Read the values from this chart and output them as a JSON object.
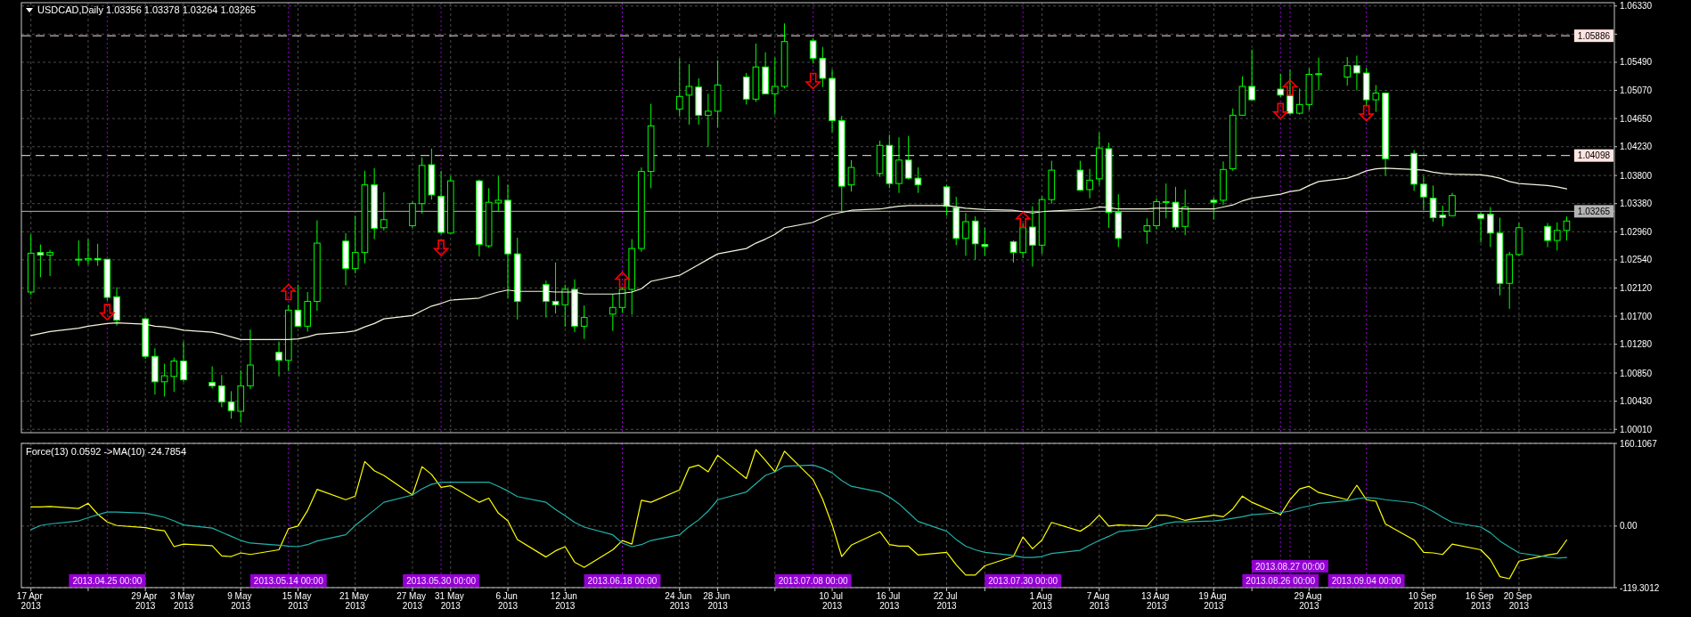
{
  "chart_data": [
    {
      "type": "candlestick",
      "title": "USDCAD,Daily 1.03356 1.03378 1.03264 1.03265",
      "x": [
        "2013-04-17",
        "2013-04-18",
        "2013-04-19",
        "2013-04-22",
        "2013-04-23",
        "2013-04-24",
        "2013-04-25",
        "2013-04-26",
        "2013-04-29",
        "2013-04-30",
        "2013-05-01",
        "2013-05-02",
        "2013-05-03",
        "2013-05-06",
        "2013-05-07",
        "2013-05-08",
        "2013-05-09",
        "2013-05-10",
        "2013-05-13",
        "2013-05-14",
        "2013-05-15",
        "2013-05-16",
        "2013-05-17",
        "2013-05-20",
        "2013-05-21",
        "2013-05-22",
        "2013-05-23",
        "2013-05-24",
        "2013-05-27",
        "2013-05-28",
        "2013-05-29",
        "2013-05-30",
        "2013-05-31",
        "2013-06-03",
        "2013-06-04",
        "2013-06-05",
        "2013-06-06",
        "2013-06-07",
        "2013-06-10",
        "2013-06-11",
        "2013-06-12",
        "2013-06-13",
        "2013-06-14",
        "2013-06-17",
        "2013-06-18",
        "2013-06-19",
        "2013-06-20",
        "2013-06-21",
        "2013-06-24",
        "2013-06-25",
        "2013-06-26",
        "2013-06-27",
        "2013-06-28",
        "2013-07-01",
        "2013-07-02",
        "2013-07-03",
        "2013-07-04",
        "2013-07-05",
        "2013-07-08",
        "2013-07-09",
        "2013-07-10",
        "2013-07-11",
        "2013-07-12",
        "2013-07-15",
        "2013-07-16",
        "2013-07-17",
        "2013-07-18",
        "2013-07-19",
        "2013-07-22",
        "2013-07-23",
        "2013-07-24",
        "2013-07-25",
        "2013-07-26",
        "2013-07-29",
        "2013-07-30",
        "2013-07-31",
        "2013-08-01",
        "2013-08-02",
        "2013-08-05",
        "2013-08-06",
        "2013-08-07",
        "2013-08-08",
        "2013-08-09",
        "2013-08-12",
        "2013-08-13",
        "2013-08-14",
        "2013-08-15",
        "2013-08-16",
        "2013-08-19",
        "2013-08-20",
        "2013-08-21",
        "2013-08-22",
        "2013-08-23",
        "2013-08-26",
        "2013-08-27",
        "2013-08-28",
        "2013-08-29",
        "2013-08-30",
        "2013-09-02",
        "2013-09-03",
        "2013-09-04",
        "2013-09-05",
        "2013-09-06",
        "2013-09-09",
        "2013-09-10",
        "2013-09-11",
        "2013-09-12",
        "2013-09-13",
        "2013-09-16",
        "2013-09-17",
        "2013-09-18",
        "2013-09-19",
        "2013-09-20",
        "2013-09-23",
        "2013-09-24",
        "2013-09-25"
      ],
      "ohlc": [
        [
          1.0206,
          1.0292,
          1.0202,
          1.0264
        ],
        [
          1.0265,
          1.0277,
          1.0228,
          1.0261
        ],
        [
          1.0261,
          1.0269,
          1.023,
          1.0265
        ],
        [
          1.0254,
          1.0283,
          1.0245,
          1.0255
        ],
        [
          1.0254,
          1.0285,
          1.0247,
          1.0256
        ],
        [
          1.0256,
          1.0278,
          1.0245,
          1.0254
        ],
        [
          1.0255,
          1.0255,
          1.0193,
          1.0198
        ],
        [
          1.0199,
          1.0213,
          1.0156,
          1.0164
        ],
        [
          1.0166,
          1.0168,
          1.0106,
          1.011
        ],
        [
          1.011,
          1.0122,
          1.0053,
          1.0072
        ],
        [
          1.0072,
          1.0099,
          1.005,
          1.0081
        ],
        [
          1.008,
          1.0108,
          1.0057,
          1.0103
        ],
        [
          1.0103,
          1.0132,
          1.0072,
          1.0075
        ],
        [
          1.0071,
          1.0095,
          1.0062,
          1.0066
        ],
        [
          1.0066,
          1.0082,
          1.0034,
          1.0042
        ],
        [
          1.0042,
          1.0058,
          1.0017,
          1.0029
        ],
        [
          1.0028,
          1.0089,
          1.0011,
          1.0066
        ],
        [
          1.0066,
          1.015,
          1.0061,
          1.0097
        ],
        [
          1.0116,
          1.0132,
          1.008,
          1.0104
        ],
        [
          1.0104,
          1.0187,
          1.0088,
          1.0179
        ],
        [
          1.0179,
          1.0217,
          1.0154,
          1.0155
        ],
        [
          1.0155,
          1.0206,
          1.0147,
          1.0192
        ],
        [
          1.0192,
          1.0313,
          1.0178,
          1.0279
        ],
        [
          1.0282,
          1.0294,
          1.0216,
          1.0241
        ],
        [
          1.0241,
          1.032,
          1.0234,
          1.0265
        ],
        [
          1.0265,
          1.0387,
          1.0249,
          1.0366
        ],
        [
          1.0366,
          1.0391,
          1.0285,
          1.0301
        ],
        [
          1.0302,
          1.0355,
          1.0298,
          1.0314
        ],
        [
          1.0305,
          1.0341,
          1.0302,
          1.0338
        ],
        [
          1.0338,
          1.0407,
          1.0323,
          1.0395
        ],
        [
          1.0396,
          1.042,
          1.0344,
          1.0351
        ],
        [
          1.0349,
          1.0387,
          1.0292,
          1.0295
        ],
        [
          1.0294,
          1.0379,
          1.0293,
          1.0372
        ],
        [
          1.0372,
          1.0374,
          1.0259,
          1.0277
        ],
        [
          1.0275,
          1.0361,
          1.0272,
          1.034
        ],
        [
          1.0339,
          1.0379,
          1.0326,
          1.0343
        ],
        [
          1.0343,
          1.0366,
          1.0197,
          1.0263
        ],
        [
          1.0263,
          1.0287,
          1.0165,
          1.0192
        ],
        [
          1.0217,
          1.0223,
          1.0168,
          1.0192
        ],
        [
          1.0192,
          1.025,
          1.0174,
          1.0187
        ],
        [
          1.0187,
          1.0217,
          1.0154,
          1.021
        ],
        [
          1.021,
          1.0225,
          1.0146,
          1.0155
        ],
        [
          1.0155,
          1.0186,
          1.0136,
          1.0168
        ],
        [
          1.0173,
          1.0203,
          1.0148,
          1.0183
        ],
        [
          1.0183,
          1.0213,
          1.0175,
          1.021
        ],
        [
          1.021,
          1.0285,
          1.0172,
          1.0271
        ],
        [
          1.0271,
          1.0392,
          1.0266,
          1.0386
        ],
        [
          1.0386,
          1.0487,
          1.0361,
          1.0454
        ],
        [
          1.0479,
          1.0555,
          1.0469,
          1.0498
        ],
        [
          1.05,
          1.0546,
          1.0456,
          1.0513
        ],
        [
          1.0512,
          1.0525,
          1.0456,
          1.047
        ],
        [
          1.047,
          1.0502,
          1.0423,
          1.0476
        ],
        [
          1.0476,
          1.0552,
          1.0452,
          1.0515
        ],
        [
          1.0527,
          1.0533,
          1.0486,
          1.0494
        ],
        [
          1.0494,
          1.0577,
          1.049,
          1.0542
        ],
        [
          1.0542,
          1.0564,
          1.0501,
          1.0502
        ],
        [
          1.0502,
          1.0556,
          1.0471,
          1.0513
        ],
        [
          1.0513,
          1.0607,
          1.051,
          1.058
        ],
        [
          1.0581,
          1.0585,
          1.0547,
          1.0555
        ],
        [
          1.0555,
          1.0572,
          1.0512,
          1.0525
        ],
        [
          1.0525,
          1.0538,
          1.0445,
          1.0462
        ],
        [
          1.0462,
          1.0469,
          1.0324,
          1.0364
        ],
        [
          1.0366,
          1.0403,
          1.0356,
          1.0392
        ],
        [
          1.0383,
          1.0432,
          1.0378,
          1.0425
        ],
        [
          1.0425,
          1.0441,
          1.0361,
          1.0368
        ],
        [
          1.0368,
          1.0437,
          1.0354,
          1.0403
        ],
        [
          1.0403,
          1.0439,
          1.0374,
          1.0376
        ],
        [
          1.0376,
          1.0392,
          1.0354,
          1.0366
        ],
        [
          1.0363,
          1.0366,
          1.032,
          1.0334
        ],
        [
          1.0332,
          1.0348,
          1.0276,
          1.0286
        ],
        [
          1.0286,
          1.0324,
          1.026,
          1.0311
        ],
        [
          1.0312,
          1.0319,
          1.0254,
          1.0278
        ],
        [
          1.0277,
          1.0302,
          1.026,
          1.0274
        ],
        [
          1.0281,
          1.0283,
          1.025,
          1.0265
        ],
        [
          1.0265,
          1.0309,
          1.0257,
          1.0302
        ],
        [
          1.0303,
          1.0334,
          1.0244,
          1.0276
        ],
        [
          1.0276,
          1.0349,
          1.0263,
          1.0344
        ],
        [
          1.0344,
          1.0402,
          1.0338,
          1.0388
        ],
        [
          1.0388,
          1.0402,
          1.0357,
          1.0358
        ],
        [
          1.0359,
          1.039,
          1.0346,
          1.0373
        ],
        [
          1.0375,
          1.0444,
          1.0366,
          1.0421
        ],
        [
          1.042,
          1.0429,
          1.0302,
          1.0325
        ],
        [
          1.0325,
          1.0352,
          1.0273,
          1.0286
        ],
        [
          1.0297,
          1.0316,
          1.0278,
          1.0305
        ],
        [
          1.0305,
          1.0346,
          1.03,
          1.0341
        ],
        [
          1.034,
          1.0368,
          1.0316,
          1.0341
        ],
        [
          1.034,
          1.0363,
          1.0299,
          1.0303
        ],
        [
          1.0304,
          1.0359,
          1.0291,
          1.0333
        ],
        [
          1.0343,
          1.0347,
          1.0314,
          1.034
        ],
        [
          1.0343,
          1.0401,
          1.0336,
          1.0389
        ],
        [
          1.039,
          1.048,
          1.0387,
          1.047
        ],
        [
          1.047,
          1.0528,
          1.0469,
          1.0513
        ],
        [
          1.0513,
          1.0568,
          1.0492,
          1.0493
        ],
        [
          1.0509,
          1.0532,
          1.0497,
          1.05
        ],
        [
          1.05,
          1.0538,
          1.0471,
          1.0473
        ],
        [
          1.0473,
          1.051,
          1.0471,
          1.0486
        ],
        [
          1.0486,
          1.054,
          1.0478,
          1.0531
        ],
        [
          1.0531,
          1.0556,
          1.0507,
          1.0532
        ],
        [
          1.0527,
          1.0557,
          1.0514,
          1.0544
        ],
        [
          1.0544,
          1.0559,
          1.0507,
          1.0533
        ],
        [
          1.0533,
          1.0541,
          1.0484,
          1.0493
        ],
        [
          1.0493,
          1.0515,
          1.0475,
          1.0503
        ],
        [
          1.0503,
          1.0504,
          1.038,
          1.0405
        ],
        [
          1.0413,
          1.0418,
          1.0357,
          1.0367
        ],
        [
          1.0367,
          1.0379,
          1.0328,
          1.0348
        ],
        [
          1.0346,
          1.0365,
          1.0311,
          1.0317
        ],
        [
          1.0321,
          1.0335,
          1.0304,
          1.0317
        ],
        [
          1.032,
          1.0354,
          1.0319,
          1.035
        ],
        [
          1.0322,
          1.0325,
          1.028,
          1.0316
        ],
        [
          1.0322,
          1.0333,
          1.0273,
          1.0294
        ],
        [
          1.0294,
          1.0317,
          1.0201,
          1.0219
        ],
        [
          1.0219,
          1.0266,
          1.0181,
          1.0262
        ],
        [
          1.0262,
          1.0309,
          1.026,
          1.0302
        ],
        [
          1.0304,
          1.0309,
          1.0273,
          1.0283
        ],
        [
          1.0283,
          1.031,
          1.0268,
          1.0298
        ],
        [
          1.0298,
          1.0319,
          1.0283,
          1.0312
        ]
      ],
      "color": "#00ff00",
      "colors": [
        "#000000",
        "#ffffff",
        "#000000",
        "#000000",
        "#000000",
        "#ffffff",
        "#ffffff",
        "#ffffff",
        "#ffffff",
        "#ffffff",
        "#000000",
        "#000000",
        "#ffffff",
        "#ffffff",
        "#ffffff",
        "#ffffff",
        "#000000",
        "#000000",
        "#ffffff",
        "#000000",
        "#ffffff",
        "#000000",
        "#000000",
        "#ffffff",
        "#000000",
        "#000000",
        "#ffffff",
        "#000000",
        "#000000",
        "#000000",
        "#ffffff",
        "#ffffff",
        "#000000",
        "#ffffff",
        "#000000",
        "#000000",
        "#ffffff",
        "#ffffff",
        "#ffffff",
        "#ffffff",
        "#000000",
        "#ffffff",
        "#000000",
        "#000000",
        "#000000",
        "#000000",
        "#000000",
        "#000000",
        "#000000",
        "#000000",
        "#ffffff",
        "#000000",
        "#000000",
        "#ffffff",
        "#000000",
        "#ffffff",
        "#000000",
        "#000000",
        "#ffffff",
        "#ffffff",
        "#ffffff",
        "#ffffff",
        "#000000",
        "#000000",
        "#ffffff",
        "#000000",
        "#ffffff",
        "#ffffff",
        "#ffffff",
        "#ffffff",
        "#000000",
        "#ffffff",
        "#ffffff",
        "#ffffff",
        "#000000",
        "#ffffff",
        "#000000",
        "#000000",
        "#ffffff",
        "#000000",
        "#000000",
        "#ffffff",
        "#ffffff",
        "#000000",
        "#000000",
        "#000000",
        "#ffffff",
        "#000000",
        "#ffffff",
        "#000000",
        "#000000",
        "#000000",
        "#ffffff",
        "#ffffff",
        "#ffffff",
        "#000000",
        "#000000",
        "#000000",
        "#000000",
        "#ffffff",
        "#ffffff",
        "#000000",
        "#ffffff",
        "#ffffff",
        "#ffffff",
        "#ffffff",
        "#ffffff",
        "#000000",
        "#ffffff",
        "#ffffff",
        "#ffffff",
        "#000000",
        "#000000",
        "#ffffff",
        "#000000",
        "#000000"
      ],
      "series": [
        {
          "type": "line",
          "color": "#f5f5dc",
          "values": [
            1.0141,
            1.0144,
            1.0147,
            1.0152,
            1.0155,
            1.0157,
            1.0159,
            1.016,
            1.0158,
            1.0155,
            1.0154,
            1.0152,
            1.0149,
            1.0146,
            1.0143,
            1.0139,
            1.0135,
            1.0135,
            1.0135,
            1.0135,
            1.0136,
            1.0139,
            1.0143,
            1.0146,
            1.0148,
            1.0154,
            1.0159,
            1.0166,
            1.0171,
            1.0178,
            1.0185,
            1.0189,
            1.0194,
            1.0197,
            1.0202,
            1.0206,
            1.0209,
            1.0207,
            1.0207,
            1.0206,
            1.0206,
            1.0206,
            1.0203,
            1.0203,
            1.0204,
            1.0206,
            1.0211,
            1.0222,
            1.0231,
            1.0239,
            1.0247,
            1.0255,
            1.0263,
            1.0271,
            1.0279,
            1.0285,
            1.0292,
            1.0302,
            1.031,
            1.0317,
            1.0322,
            1.0325,
            1.0328,
            1.033,
            1.0332,
            1.0334,
            1.0335,
            1.0335,
            1.0335,
            1.0333,
            1.0331,
            1.033,
            1.0329,
            1.0328,
            1.0326,
            1.0324,
            1.0326,
            1.0327,
            1.0329,
            1.033,
            1.0333,
            1.0332,
            1.033,
            1.033,
            1.0331,
            1.0331,
            1.0331,
            1.033,
            1.033,
            1.0333,
            1.0336,
            1.0342,
            1.0346,
            1.0352,
            1.0356,
            1.0358,
            1.0365,
            1.0371,
            1.0376,
            1.0381,
            1.0387,
            1.039,
            1.0391,
            1.0389,
            1.0388,
            1.0385,
            1.0383,
            1.0382,
            1.0381,
            1.0379,
            1.0376,
            1.0371,
            1.0368,
            1.0365,
            1.0363,
            1.036
          ]
        },
        {
          "type": "scatter",
          "color": "#ff0000",
          "marker": "triangle",
          "values": [
            null,
            null,
            null,
            null,
            null,
            null,
            1.0176,
            null,
            null,
            null,
            null,
            null,
            null,
            null,
            null,
            null,
            null,
            null,
            null,
            1.0206,
            null,
            null,
            null,
            null,
            null,
            null,
            null,
            null,
            null,
            null,
            null,
            1.0272,
            null,
            null,
            null,
            null,
            null,
            null,
            null,
            null,
            null,
            null,
            null,
            null,
            1.0224,
            null,
            null,
            null,
            null,
            null,
            null,
            null,
            null,
            null,
            null,
            null,
            null,
            null,
            1.0521,
            null,
            null,
            null,
            null,
            null,
            null,
            null,
            null,
            null,
            null,
            null,
            null,
            null,
            null,
            null,
            1.0314,
            null,
            null,
            null,
            null,
            null,
            null,
            null,
            null,
            null,
            null,
            null,
            null,
            null,
            null,
            null,
            null,
            null,
            null,
            1.0476,
            1.0511,
            null,
            null,
            null,
            null,
            null,
            1.0473,
            null,
            null,
            null,
            null,
            null,
            null,
            null,
            null,
            null,
            null,
            null,
            null,
            null,
            null,
            null
          ]
        }
      ],
      "xlim": [
        "2013-04-16",
        "2013-09-30"
      ],
      "xticks": [
        {
          "value": "2013-04-17",
          "label": null
        },
        {
          "value": "2013-04-23",
          "label": null
        },
        {
          "value": "2013-04-29",
          "label": null
        },
        {
          "value": "2013-05-03",
          "label": null
        },
        {
          "value": "2013-05-09",
          "label": null
        },
        {
          "value": "2013-05-15",
          "label": null
        },
        {
          "value": "2013-05-21",
          "label": null
        },
        {
          "value": "2013-05-27",
          "label": null
        },
        {
          "value": "2013-05-31",
          "label": null
        },
        {
          "value": "2013-06-06",
          "label": null
        },
        {
          "value": "2013-06-12",
          "label": null
        },
        {
          "value": "2013-06-24",
          "label": null
        },
        {
          "value": "2013-06-28",
          "label": null
        },
        {
          "value": "2013-07-04",
          "label": null
        },
        {
          "value": "2013-07-10",
          "label": null
        },
        {
          "value": "2013-07-16",
          "label": null
        },
        {
          "value": "2013-07-22",
          "label": null
        },
        {
          "value": "2013-07-26",
          "label": null
        },
        {
          "value": "2013-08-01",
          "label": null
        },
        {
          "value": "2013-08-07",
          "label": null
        },
        {
          "value": "2013-08-13",
          "label": null
        },
        {
          "value": "2013-08-19",
          "label": null
        },
        {
          "value": "2013-08-23",
          "label": null
        },
        {
          "value": "2013-08-29",
          "label": null
        },
        {
          "value": "2013-09-10",
          "label": null
        },
        {
          "value": "2013-09-16",
          "label": null
        },
        {
          "value": "2013-09-20",
          "label": null
        }
      ],
      "ylim": [
        0.9996,
        1.0638
      ],
      "yticks": [
        {
          "value": 1.0001,
          "label": "1.00010"
        },
        {
          "value": 1.0043,
          "label": "1.00430"
        },
        {
          "value": 1.0085,
          "label": "1.00850"
        },
        {
          "value": 1.0128,
          "label": "1.01280"
        },
        {
          "value": 1.017,
          "label": "1.01700"
        },
        {
          "value": 1.0212,
          "label": "1.02120"
        },
        {
          "value": 1.0254,
          "label": "1.02540"
        },
        {
          "value": 1.0296,
          "label": "1.02960"
        },
        {
          "value": 1.0338,
          "label": "1.03380"
        },
        {
          "value": 1.038,
          "label": "1.03800"
        },
        {
          "value": 1.0423,
          "label": "1.04230"
        },
        {
          "value": 1.0465,
          "label": "1.04650"
        },
        {
          "value": 1.0507,
          "label": "1.05070"
        },
        {
          "value": 1.0549,
          "label": "1.05490"
        },
        {
          "value": 1.0591,
          "label": null
        },
        {
          "value": 1.0633,
          "label": "1.06330"
        }
      ],
      "grid": true,
      "tick_labels": "y",
      "ref_lines": [
        {
          "axis": "y",
          "value": 1.05886,
          "label": "1.05886",
          "color": "#ffe4e1",
          "line_style": "dashed"
        },
        {
          "axis": "y",
          "value": 1.04098,
          "label": "1.04098",
          "color": "#ffe4e1",
          "line_style": "dashed"
        },
        {
          "axis": "y",
          "value": 1.03265,
          "label": "1.03265",
          "color": "#b4b4b4",
          "line_style": "solid"
        },
        {
          "axis": "x",
          "value": "2013-04-25",
          "color": "#9400d3",
          "line_style": "dotted"
        },
        {
          "axis": "x",
          "value": "2013-05-14",
          "color": "#9400d3",
          "line_style": "dotted"
        },
        {
          "axis": "x",
          "value": "2013-05-30",
          "color": "#9400d3",
          "line_style": "dotted"
        },
        {
          "axis": "x",
          "value": "2013-06-18",
          "color": "#9400d3",
          "line_style": "dotted"
        },
        {
          "axis": "x",
          "value": "2013-07-08",
          "color": "#9400d3",
          "line_style": "dotted"
        },
        {
          "axis": "x",
          "value": "2013-07-30",
          "color": "#9400d3",
          "line_style": "dotted"
        },
        {
          "axis": "x",
          "value": "2013-08-26",
          "color": "#9400d3",
          "line_style": "dotted"
        },
        {
          "axis": "x",
          "value": "2013-08-27",
          "color": "#9400d3",
          "line_style": "dotted"
        },
        {
          "axis": "x",
          "value": "2013-09-04",
          "color": "#9400d3",
          "line_style": "dotted"
        }
      ]
    },
    {
      "type": "line",
      "title": "Force(13) 0.0592 ->MA(10) -24.7854",
      "x": [
        "2013-04-17",
        "2013-04-18",
        "2013-04-19",
        "2013-04-22",
        "2013-04-23",
        "2013-04-24",
        "2013-04-25",
        "2013-04-26",
        "2013-04-29",
        "2013-04-30",
        "2013-05-01",
        "2013-05-02",
        "2013-05-03",
        "2013-05-06",
        "2013-05-07",
        "2013-05-08",
        "2013-05-09",
        "2013-05-10",
        "2013-05-13",
        "2013-05-14",
        "2013-05-15",
        "2013-05-16",
        "2013-05-17",
        "2013-05-20",
        "2013-05-21",
        "2013-05-22",
        "2013-05-23",
        "2013-05-24",
        "2013-05-27",
        "2013-05-28",
        "2013-05-29",
        "2013-05-30",
        "2013-05-31",
        "2013-06-03",
        "2013-06-04",
        "2013-06-05",
        "2013-06-06",
        "2013-06-07",
        "2013-06-10",
        "2013-06-11",
        "2013-06-12",
        "2013-06-13",
        "2013-06-14",
        "2013-06-17",
        "2013-06-18",
        "2013-06-19",
        "2013-06-20",
        "2013-06-21",
        "2013-06-24",
        "2013-06-25",
        "2013-06-26",
        "2013-06-27",
        "2013-06-28",
        "2013-07-01",
        "2013-07-02",
        "2013-07-03",
        "2013-07-04",
        "2013-07-05",
        "2013-07-08",
        "2013-07-09",
        "2013-07-10",
        "2013-07-11",
        "2013-07-12",
        "2013-07-15",
        "2013-07-16",
        "2013-07-17",
        "2013-07-18",
        "2013-07-19",
        "2013-07-22",
        "2013-07-23",
        "2013-07-24",
        "2013-07-25",
        "2013-07-26",
        "2013-07-29",
        "2013-07-30",
        "2013-07-31",
        "2013-08-01",
        "2013-08-02",
        "2013-08-05",
        "2013-08-06",
        "2013-08-07",
        "2013-08-08",
        "2013-08-09",
        "2013-08-12",
        "2013-08-13",
        "2013-08-14",
        "2013-08-15",
        "2013-08-16",
        "2013-08-19",
        "2013-08-20",
        "2013-08-21",
        "2013-08-22",
        "2013-08-23",
        "2013-08-26",
        "2013-08-27",
        "2013-08-28",
        "2013-08-29",
        "2013-08-30",
        "2013-09-02",
        "2013-09-03",
        "2013-09-04",
        "2013-09-05",
        "2013-09-06",
        "2013-09-09",
        "2013-09-10",
        "2013-09-11",
        "2013-09-12",
        "2013-09-13",
        "2013-09-16",
        "2013-09-17",
        "2013-09-18",
        "2013-09-19",
        "2013-09-20",
        "2013-09-23",
        "2013-09-24",
        "2013-09-25"
      ],
      "series": [
        {
          "color": "#ffff00",
          "values": [
            37,
            37,
            38,
            34,
            44,
            23,
            8,
            1,
            -3,
            -7,
            -9,
            -40,
            -35,
            -38,
            -58,
            -59,
            -52,
            -55,
            -46,
            -5,
            0,
            30,
            71,
            51,
            58,
            125,
            107,
            98,
            60,
            115,
            100,
            75,
            78,
            46,
            54,
            25,
            10,
            -26,
            -60,
            -48,
            -40,
            -70,
            -80,
            -46,
            -28,
            -35,
            50,
            46,
            70,
            113,
            118,
            105,
            137,
            92,
            148,
            127,
            105,
            145,
            90,
            52,
            2,
            -59,
            -37,
            -11,
            -36,
            -39,
            -39,
            -56,
            -51,
            -75,
            -95,
            -95,
            -77,
            -59,
            -21,
            -44,
            -27,
            7,
            -10,
            2,
            21,
            0,
            2,
            0,
            21,
            21,
            17,
            11,
            21,
            18,
            33,
            58,
            46,
            22,
            51,
            72,
            77,
            65,
            51,
            79,
            51,
            48,
            4,
            -27,
            -51,
            -52,
            -55,
            -35,
            -46,
            -65,
            -98,
            -102,
            -68,
            -56,
            -53,
            -27
          ]
        },
        {
          "color": "#20b2aa",
          "values": [
            -7,
            1,
            4,
            10,
            16,
            22,
            27,
            27,
            25,
            21,
            17,
            10,
            2,
            -4,
            -12,
            -20,
            -28,
            -33,
            -37,
            -39,
            -40,
            -36,
            -29,
            -17,
            1,
            16,
            31,
            46,
            60,
            72,
            81,
            85,
            85,
            85,
            85,
            77,
            68,
            57,
            46,
            32,
            20,
            7,
            -2,
            -17,
            -33,
            -40,
            -36,
            -28,
            -17,
            -1,
            12,
            29,
            51,
            66,
            82,
            98,
            105,
            116,
            118,
            112,
            103,
            88,
            77,
            66,
            56,
            43,
            26,
            9,
            -10,
            -26,
            -39,
            -46,
            -51,
            -57,
            -61,
            -61,
            -59,
            -53,
            -47,
            -37,
            -28,
            -20,
            -11,
            -5,
            0,
            5,
            8,
            8,
            10,
            12,
            15,
            18,
            22,
            26,
            29,
            35,
            39,
            44,
            49,
            53,
            55,
            54,
            51,
            45,
            38,
            28,
            17,
            7,
            -2,
            -13,
            -29,
            -41,
            -52,
            -60,
            -62,
            -61
          ]
        }
      ],
      "xlim": [
        "2013-04-16",
        "2013-09-30"
      ],
      "xticks": [
        {
          "value": "2013-04-17",
          "label": "17 Apr 2013"
        },
        {
          "value": "2013-04-23",
          "label": null
        },
        {
          "value": "2013-04-29",
          "label": "29 Apr 2013"
        },
        {
          "value": "2013-05-03",
          "label": "3 May 2013"
        },
        {
          "value": "2013-05-09",
          "label": "9 May 2013"
        },
        {
          "value": "2013-05-15",
          "label": "15 May 2013"
        },
        {
          "value": "2013-05-21",
          "label": "21 May 2013"
        },
        {
          "value": "2013-05-27",
          "label": "27 May 2013"
        },
        {
          "value": "2013-05-31",
          "label": "31 May 2013"
        },
        {
          "value": "2013-06-06",
          "label": "6 Jun 2013"
        },
        {
          "value": "2013-06-12",
          "label": "12 Jun 2013"
        },
        {
          "value": "2013-06-24",
          "label": "24 Jun 2013"
        },
        {
          "value": "2013-06-28",
          "label": "28 Jun 2013"
        },
        {
          "value": "2013-07-04",
          "label": null
        },
        {
          "value": "2013-07-10",
          "label": "10 Jul 2013"
        },
        {
          "value": "2013-07-16",
          "label": "16 Jul 2013"
        },
        {
          "value": "2013-07-22",
          "label": "22 Jul 2013"
        },
        {
          "value": "2013-07-26",
          "label": null
        },
        {
          "value": "2013-08-01",
          "label": "1 Aug 2013"
        },
        {
          "value": "2013-08-07",
          "label": "7 Aug 2013"
        },
        {
          "value": "2013-08-13",
          "label": "13 Aug 2013"
        },
        {
          "value": "2013-08-19",
          "label": "19 Aug 2013"
        },
        {
          "value": "2013-08-23",
          "label": null
        },
        {
          "value": "2013-08-29",
          "label": "29 Aug 2013"
        },
        {
          "value": "2013-09-10",
          "label": "10 Sep 2013"
        },
        {
          "value": "2013-09-16",
          "label": "16 Sep 2013"
        },
        {
          "value": "2013-09-20",
          "label": "20 Sep 2013"
        }
      ],
      "ylim": [
        -119.3012,
        160.1067
      ],
      "yticks": [
        {
          "value": -119.3012,
          "label": "-119.3012"
        },
        {
          "value": 0,
          "label": "0.00"
        },
        {
          "value": 160.1067,
          "label": "160.1067"
        }
      ],
      "grid": true,
      "ref_lines": [
        {
          "axis": "x",
          "value": "2013-04-25",
          "label": "2013.04.25 00:00",
          "color": "#9400d3",
          "line_style": "dotted"
        },
        {
          "axis": "x",
          "value": "2013-05-14",
          "label": "2013.05.14 00:00",
          "color": "#9400d3",
          "line_style": "dotted"
        },
        {
          "axis": "x",
          "value": "2013-05-30",
          "label": "2013.05.30 00:00",
          "color": "#9400d3",
          "line_style": "dotted"
        },
        {
          "axis": "x",
          "value": "2013-06-18",
          "label": "2013.06.18 00:00",
          "color": "#9400d3",
          "line_style": "dotted"
        },
        {
          "axis": "x",
          "value": "2013-07-08",
          "label": "2013.07.08 00:00",
          "color": "#9400d3",
          "line_style": "dotted"
        },
        {
          "axis": "x",
          "value": "2013-07-30",
          "label": "2013.07.30 00:00",
          "color": "#9400d3",
          "line_style": "dotted"
        },
        {
          "axis": "x",
          "value": "2013-08-26",
          "label": "2013.08.26 00:00",
          "color": "#9400d3",
          "line_style": "dotted"
        },
        {
          "axis": "x",
          "value": "2013-08-27",
          "label": "2013.08.27 00:00",
          "color": "#9400d3",
          "line_style": "dotted"
        },
        {
          "axis": "x",
          "value": "2013-09-04",
          "label": "2013.09.04 00:00",
          "color": "#9400d3",
          "line_style": "dotted"
        }
      ]
    }
  ]
}
